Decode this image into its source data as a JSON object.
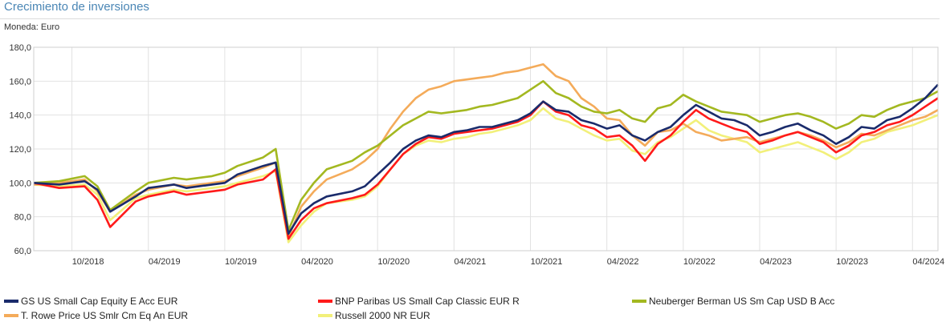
{
  "header": {
    "title": "Crecimiento de inversiones",
    "currency": "Moneda: Euro"
  },
  "chart_data": {
    "type": "line",
    "title": "Crecimiento de inversiones",
    "ylim": [
      60,
      180
    ],
    "yticks": [
      "60,0",
      "80,0",
      "100,0",
      "120,0",
      "140,0",
      "160,0",
      "180,0"
    ],
    "ytick_values": [
      60,
      80,
      100,
      120,
      140,
      160,
      180
    ],
    "xticks": [
      "10/2018",
      "04/2019",
      "10/2019",
      "04/2020",
      "10/2020",
      "04/2021",
      "10/2021",
      "04/2022",
      "10/2022",
      "04/2023",
      "10/2023",
      "04/2024"
    ],
    "x_start": "2018-07",
    "x_end": "2024-06",
    "grid": true,
    "legend_position": "bottom",
    "x": [
      "2018-07",
      "2018-09",
      "2018-11",
      "2018-12",
      "2019-01",
      "2019-03",
      "2019-04",
      "2019-06",
      "2019-07",
      "2019-09",
      "2019-10",
      "2019-11",
      "2020-01",
      "2020-02",
      "2020-03",
      "2020-04",
      "2020-05",
      "2020-06",
      "2020-08",
      "2020-09",
      "2020-10",
      "2020-11",
      "2020-12",
      "2021-01",
      "2021-02",
      "2021-03",
      "2021-04",
      "2021-05",
      "2021-06",
      "2021-07",
      "2021-08",
      "2021-09",
      "2021-10",
      "2021-11",
      "2021-12",
      "2022-01",
      "2022-02",
      "2022-03",
      "2022-04",
      "2022-05",
      "2022-06",
      "2022-07",
      "2022-08",
      "2022-09",
      "2022-10",
      "2022-11",
      "2022-12",
      "2023-01",
      "2023-02",
      "2023-03",
      "2023-04",
      "2023-05",
      "2023-06",
      "2023-07",
      "2023-08",
      "2023-09",
      "2023-10",
      "2023-11",
      "2023-12",
      "2024-01",
      "2024-02",
      "2024-03",
      "2024-04",
      "2024-05",
      "2024-06"
    ],
    "series": [
      {
        "name": "GS US Small Cap Equity E Acc EUR",
        "color": "#1a2b6b",
        "values": [
          100,
          99,
          101,
          96,
          83,
          92,
          97,
          99,
          97,
          99,
          100,
          105,
          110,
          112,
          70,
          82,
          88,
          92,
          95,
          98,
          105,
          112,
          120,
          125,
          128,
          127,
          130,
          131,
          133,
          133,
          135,
          137,
          141,
          148,
          143,
          142,
          137,
          135,
          132,
          134,
          128,
          125,
          130,
          133,
          140,
          146,
          142,
          138,
          137,
          134,
          128,
          130,
          133,
          135,
          131,
          128,
          123,
          127,
          133,
          132,
          137,
          139,
          144,
          150,
          158
        ]
      },
      {
        "name": "BNP Paribas US Small Cap Classic EUR R",
        "color": "#ff1a1a",
        "values": [
          100,
          97,
          98,
          90,
          74,
          89,
          92,
          95,
          93,
          95,
          96,
          99,
          102,
          108,
          67,
          78,
          85,
          88,
          91,
          93,
          99,
          108,
          117,
          123,
          127,
          126,
          129,
          130,
          131,
          132,
          134,
          136,
          140,
          148,
          142,
          140,
          134,
          132,
          127,
          128,
          122,
          113,
          123,
          128,
          136,
          143,
          138,
          135,
          132,
          130,
          123,
          125,
          128,
          130,
          127,
          124,
          118,
          122,
          128,
          130,
          134,
          136,
          140,
          145,
          150
        ]
      },
      {
        "name": "Neuberger Berman US Sm Cap USD B Acc",
        "color": "#a3b820",
        "values": [
          100,
          101,
          104,
          98,
          84,
          95,
          100,
          103,
          102,
          104,
          106,
          110,
          115,
          120,
          72,
          90,
          100,
          108,
          113,
          118,
          122,
          128,
          134,
          138,
          142,
          141,
          142,
          143,
          145,
          146,
          148,
          150,
          155,
          160,
          153,
          150,
          145,
          142,
          141,
          143,
          138,
          136,
          144,
          146,
          152,
          148,
          145,
          142,
          141,
          140,
          136,
          138,
          140,
          141,
          139,
          136,
          132,
          135,
          140,
          139,
          143,
          146,
          148,
          150,
          154
        ]
      },
      {
        "name": "T. Rowe Price US Smlr Cm Eq An EUR",
        "color": "#f4ab5a",
        "values": [
          99,
          100,
          102,
          95,
          83,
          93,
          96,
          99,
          98,
          100,
          101,
          104,
          109,
          112,
          68,
          86,
          95,
          102,
          108,
          113,
          120,
          132,
          142,
          150,
          155,
          157,
          160,
          161,
          162,
          163,
          165,
          166,
          168,
          170,
          163,
          160,
          150,
          145,
          138,
          137,
          128,
          122,
          130,
          131,
          135,
          130,
          128,
          125,
          126,
          127,
          124,
          126,
          128,
          130,
          128,
          125,
          121,
          124,
          129,
          128,
          131,
          134,
          137,
          139,
          143
        ]
      },
      {
        "name": "Russell 2000 NR EUR",
        "color": "#f2f07a",
        "values": [
          99,
          98,
          99,
          93,
          78,
          91,
          93,
          96,
          95,
          97,
          98,
          100,
          104,
          107,
          65,
          75,
          83,
          88,
          90,
          92,
          98,
          108,
          117,
          122,
          125,
          124,
          126,
          127,
          129,
          130,
          132,
          134,
          137,
          144,
          138,
          136,
          132,
          128,
          125,
          126,
          119,
          117,
          124,
          127,
          132,
          137,
          131,
          128,
          126,
          124,
          118,
          120,
          122,
          124,
          121,
          118,
          114,
          118,
          124,
          126,
          130,
          132,
          134,
          137,
          140
        ]
      }
    ]
  }
}
